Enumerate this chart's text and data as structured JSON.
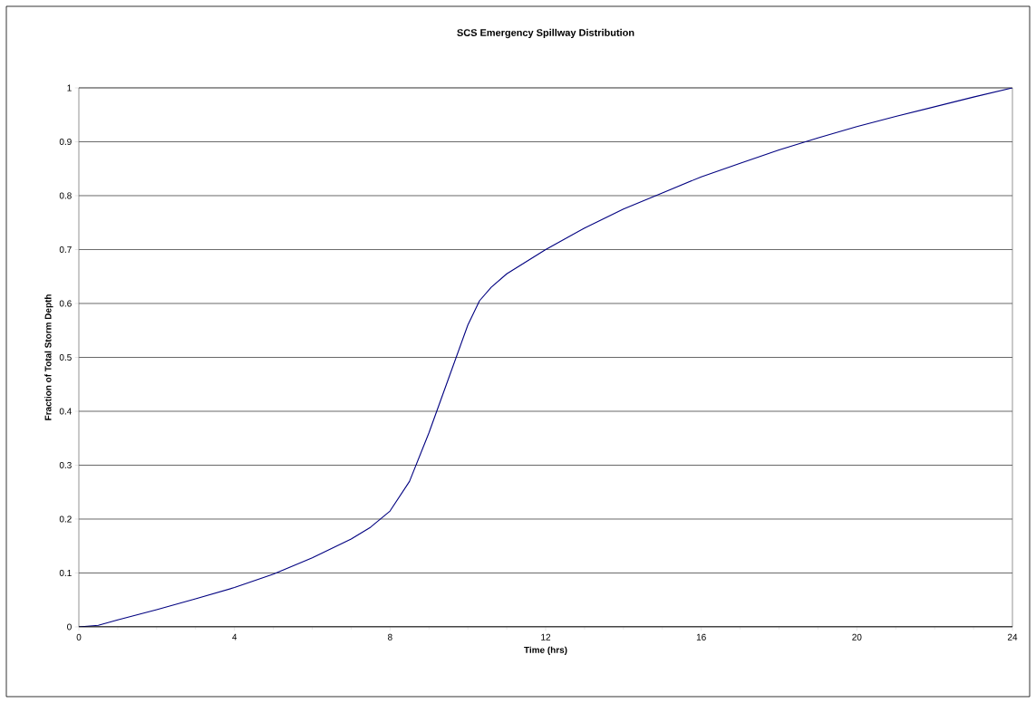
{
  "chart_data": {
    "type": "line",
    "title": "SCS Emergency Spillway Distribution",
    "xlabel": "Time (hrs)",
    "ylabel": "Fraction of Total Storm Depth",
    "x": [
      0,
      0.5,
      1,
      2,
      3,
      4,
      5,
      6,
      7,
      7.5,
      8,
      8.5,
      9,
      9.5,
      10,
      10.3,
      10.6,
      11,
      12,
      13,
      14,
      15,
      16,
      17,
      18,
      19,
      20,
      21,
      22,
      23,
      24
    ],
    "series": [
      {
        "color": "#000080",
        "values": [
          0,
          0.003,
          0.013,
          0.032,
          0.052,
          0.073,
          0.098,
          0.128,
          0.163,
          0.185,
          0.215,
          0.27,
          0.36,
          0.46,
          0.56,
          0.605,
          0.63,
          0.655,
          0.7,
          0.74,
          0.775,
          0.805,
          0.835,
          0.86,
          0.885,
          0.907,
          0.928,
          0.947,
          0.965,
          0.983,
          1.0
        ]
      }
    ],
    "xlim": [
      0,
      24
    ],
    "xticks": [
      0,
      4,
      8,
      12,
      16,
      20,
      24
    ],
    "ylim": [
      0,
      1
    ],
    "yticks": [
      0,
      0.1,
      0.2,
      0.3,
      0.4,
      0.5,
      0.6,
      0.7,
      0.8,
      0.9,
      1
    ],
    "grid": "y",
    "marker": "none",
    "line_style": "solid"
  }
}
